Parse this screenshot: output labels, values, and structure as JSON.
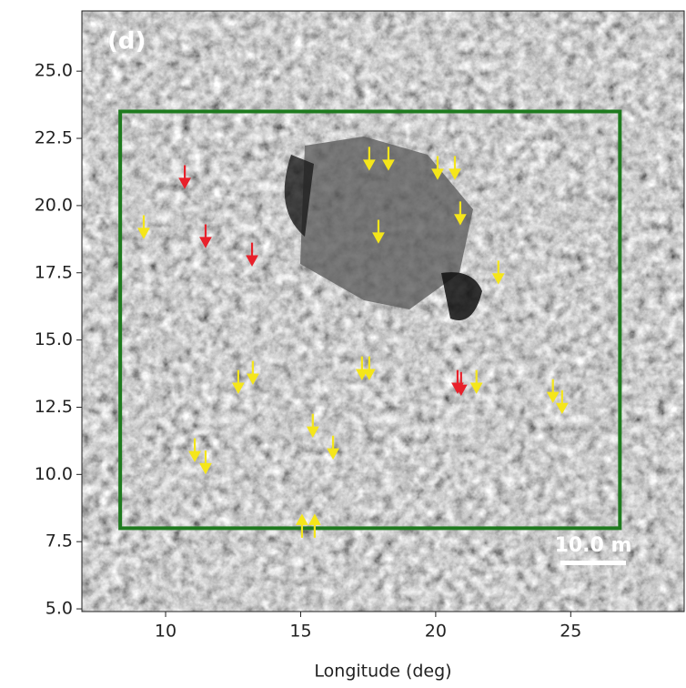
{
  "chart_data": {
    "type": "image",
    "xlabel": "Longitude (deg)",
    "xlim": [
      6.9,
      29.2
    ],
    "xticks": [
      10,
      15,
      20,
      25
    ],
    "ylim": [
      4.9,
      27.24
    ],
    "yticks": [
      {
        "value": 5.0,
        "label": "5.0"
      },
      7.5,
      {
        "value": 10.0,
        "label": "10.0"
      },
      12.5,
      {
        "value": 15.0,
        "label": "15.0"
      },
      17.5,
      {
        "value": 20.0,
        "label": "20.0"
      },
      22.5,
      {
        "value": 25.0,
        "label": "25.0"
      }
    ],
    "panel_label": "(d)",
    "scale_bar": "10.0 m",
    "box": {
      "x": [
        8.32,
        26.82
      ],
      "y": [
        8.0,
        23.5
      ],
      "color": "#1f7a1f"
    },
    "arrows": {
      "x": [
        17.54,
        18.25,
        20.07,
        20.71,
        20.91,
        17.88,
        9.19,
        22.32,
        12.69,
        13.23,
        17.27,
        17.54,
        21.51,
        24.34,
        24.68,
        15.45,
        16.2,
        11.08,
        11.48,
        15.05,
        15.52,
        10.71,
        11.48,
        13.2,
        20.81,
        20.94
      ],
      "y": [
        21.37,
        21.37,
        21.03,
        21.03,
        19.34,
        18.66,
        18.83,
        17.14,
        13.07,
        13.41,
        13.58,
        13.58,
        13.07,
        12.73,
        12.32,
        11.44,
        10.63,
        10.53,
        10.08,
        8.46,
        8.46,
        20.69,
        18.49,
        17.81,
        13.07,
        13.0
      ],
      "direction": [
        "down",
        "down",
        "down",
        "down",
        "down",
        "down",
        "down",
        "down",
        "down",
        "down",
        "down",
        "down",
        "down",
        "down",
        "down",
        "down",
        "down",
        "down",
        "down",
        "up",
        "up",
        "down",
        "down",
        "down",
        "down",
        "down"
      ],
      "color": [
        "#f5e61a",
        "#f5e61a",
        "#f5e61a",
        "#f5e61a",
        "#f5e61a",
        "#f5e61a",
        "#f5e61a",
        "#f5e61a",
        "#f5e61a",
        "#f5e61a",
        "#f5e61a",
        "#f5e61a",
        "#f5e61a",
        "#f5e61a",
        "#f5e61a",
        "#f5e61a",
        "#f5e61a",
        "#f5e61a",
        "#f5e61a",
        "#f5e61a",
        "#f5e61a",
        "#e8202a",
        "#e8202a",
        "#e8202a",
        "#e8202a",
        "#e8202a"
      ]
    }
  }
}
